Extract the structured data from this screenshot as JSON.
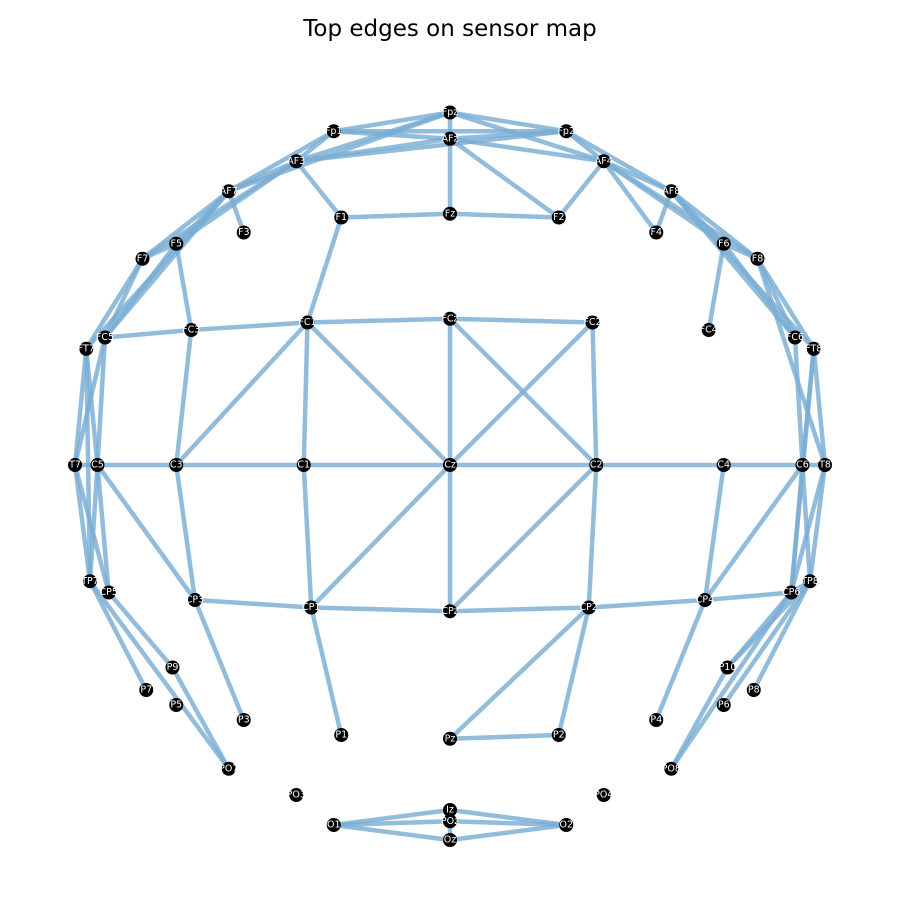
{
  "title": "Top edges on sensor map",
  "colors": {
    "edge": "#7aadd4",
    "node": "#000000",
    "label": "#ffffff"
  },
  "chart_data": {
    "type": "network",
    "nodes": [
      {
        "id": "Fpz",
        "x": 0.0,
        "y": 0.94
      },
      {
        "id": "Fp1",
        "x": -0.31,
        "y": 0.89
      },
      {
        "id": "Fp2",
        "x": 0.31,
        "y": 0.89
      },
      {
        "id": "AFz",
        "x": 0.0,
        "y": 0.87
      },
      {
        "id": "AF3",
        "x": -0.41,
        "y": 0.81
      },
      {
        "id": "AF4",
        "x": 0.41,
        "y": 0.81
      },
      {
        "id": "AF7",
        "x": -0.59,
        "y": 0.73
      },
      {
        "id": "AF8",
        "x": 0.59,
        "y": 0.73
      },
      {
        "id": "F3",
        "x": -0.55,
        "y": 0.62
      },
      {
        "id": "F1",
        "x": -0.29,
        "y": 0.66
      },
      {
        "id": "Fz",
        "x": 0.0,
        "y": 0.67
      },
      {
        "id": "F2",
        "x": 0.29,
        "y": 0.66
      },
      {
        "id": "F4",
        "x": 0.55,
        "y": 0.62
      },
      {
        "id": "F5",
        "x": -0.73,
        "y": 0.59
      },
      {
        "id": "F6",
        "x": 0.73,
        "y": 0.59
      },
      {
        "id": "F7",
        "x": -0.82,
        "y": 0.55
      },
      {
        "id": "F8",
        "x": 0.82,
        "y": 0.55
      },
      {
        "id": "FT7",
        "x": -0.97,
        "y": 0.31
      },
      {
        "id": "FC5",
        "x": -0.92,
        "y": 0.34
      },
      {
        "id": "FC3",
        "x": -0.69,
        "y": 0.36
      },
      {
        "id": "FC1",
        "x": -0.38,
        "y": 0.38
      },
      {
        "id": "FCz",
        "x": 0.0,
        "y": 0.39
      },
      {
        "id": "FC2",
        "x": 0.38,
        "y": 0.38
      },
      {
        "id": "FC4",
        "x": 0.69,
        "y": 0.36
      },
      {
        "id": "FC6",
        "x": 0.92,
        "y": 0.34
      },
      {
        "id": "FT8",
        "x": 0.97,
        "y": 0.31
      },
      {
        "id": "T7",
        "x": -1.0,
        "y": 0.0
      },
      {
        "id": "C5",
        "x": -0.94,
        "y": 0.0
      },
      {
        "id": "C3",
        "x": -0.73,
        "y": 0.0
      },
      {
        "id": "C1",
        "x": -0.39,
        "y": 0.0
      },
      {
        "id": "Cz",
        "x": 0.0,
        "y": 0.0
      },
      {
        "id": "C2",
        "x": 0.39,
        "y": 0.0
      },
      {
        "id": "C4",
        "x": 0.73,
        "y": 0.0
      },
      {
        "id": "C6",
        "x": 0.94,
        "y": 0.0
      },
      {
        "id": "T8",
        "x": 1.0,
        "y": 0.0
      },
      {
        "id": "TP7",
        "x": -0.96,
        "y": -0.31
      },
      {
        "id": "CP5",
        "x": -0.91,
        "y": -0.34
      },
      {
        "id": "CP3",
        "x": -0.68,
        "y": -0.36
      },
      {
        "id": "CP1",
        "x": -0.37,
        "y": -0.38
      },
      {
        "id": "CPz",
        "x": 0.0,
        "y": -0.39
      },
      {
        "id": "CP2",
        "x": 0.37,
        "y": -0.38
      },
      {
        "id": "CP4",
        "x": 0.68,
        "y": -0.36
      },
      {
        "id": "CP6",
        "x": 0.91,
        "y": -0.34
      },
      {
        "id": "TP8",
        "x": 0.96,
        "y": -0.31
      },
      {
        "id": "P9",
        "x": -0.74,
        "y": -0.54
      },
      {
        "id": "P10",
        "x": 0.74,
        "y": -0.54
      },
      {
        "id": "P7",
        "x": -0.81,
        "y": -0.6
      },
      {
        "id": "P8",
        "x": 0.81,
        "y": -0.6
      },
      {
        "id": "P5",
        "x": -0.73,
        "y": -0.64
      },
      {
        "id": "P6",
        "x": 0.73,
        "y": -0.64
      },
      {
        "id": "P3",
        "x": -0.55,
        "y": -0.68
      },
      {
        "id": "P4",
        "x": 0.55,
        "y": -0.68
      },
      {
        "id": "P1",
        "x": -0.29,
        "y": -0.72
      },
      {
        "id": "P2",
        "x": 0.29,
        "y": -0.72
      },
      {
        "id": "Pz",
        "x": 0.0,
        "y": -0.73
      },
      {
        "id": "PO7",
        "x": -0.59,
        "y": -0.81
      },
      {
        "id": "PO8",
        "x": 0.59,
        "y": -0.81
      },
      {
        "id": "PO3",
        "x": -0.41,
        "y": -0.88
      },
      {
        "id": "PO4",
        "x": 0.41,
        "y": -0.88
      },
      {
        "id": "Iz",
        "x": 0.0,
        "y": -0.92
      },
      {
        "id": "POz",
        "x": 0.0,
        "y": -0.95
      },
      {
        "id": "O1",
        "x": -0.31,
        "y": -0.96
      },
      {
        "id": "O2",
        "x": 0.31,
        "y": -0.96
      },
      {
        "id": "Oz",
        "x": 0.0,
        "y": -1.0
      }
    ],
    "edges": [
      [
        "Fp1",
        "Fpz"
      ],
      [
        "Fp1",
        "AFz"
      ],
      [
        "Fp1",
        "AF3"
      ],
      [
        "Fp1",
        "AF7"
      ],
      [
        "Fp1",
        "Fp2"
      ],
      [
        "Fpz",
        "AF3"
      ],
      [
        "Fpz",
        "AFz"
      ],
      [
        "Fpz",
        "Fp2"
      ],
      [
        "Fpz",
        "AF4"
      ],
      [
        "Fpz",
        "AF7"
      ],
      [
        "AFz",
        "AF3"
      ],
      [
        "AFz",
        "AF4"
      ],
      [
        "AFz",
        "Fz"
      ],
      [
        "AFz",
        "F2"
      ],
      [
        "AFz",
        "Fp2"
      ],
      [
        "AF3",
        "Fp2"
      ],
      [
        "AF3",
        "F1"
      ],
      [
        "AF3",
        "AF7"
      ],
      [
        "AF3",
        "F7"
      ],
      [
        "AF3",
        "F5"
      ],
      [
        "AF7",
        "F3"
      ],
      [
        "AF7",
        "F5"
      ],
      [
        "AF7",
        "F7"
      ],
      [
        "AF7",
        "FC5"
      ],
      [
        "AF7",
        "FT7"
      ],
      [
        "Fp2",
        "AF4"
      ],
      [
        "Fp2",
        "AF8"
      ],
      [
        "AF4",
        "F2"
      ],
      [
        "AF4",
        "F4"
      ],
      [
        "AF4",
        "AF8"
      ],
      [
        "AF4",
        "F6"
      ],
      [
        "AF4",
        "F8"
      ],
      [
        "AF8",
        "F4"
      ],
      [
        "AF8",
        "F6"
      ],
      [
        "AF8",
        "F8"
      ],
      [
        "AF8",
        "FC6"
      ],
      [
        "AF8",
        "FT8"
      ],
      [
        "F1",
        "Fz"
      ],
      [
        "Fz",
        "F2"
      ],
      [
        "F1",
        "FC1"
      ],
      [
        "F7",
        "F5"
      ],
      [
        "F7",
        "FT7"
      ],
      [
        "F7",
        "FC5"
      ],
      [
        "F5",
        "FC5"
      ],
      [
        "F5",
        "FC3"
      ],
      [
        "F6",
        "F8"
      ],
      [
        "F6",
        "FC4"
      ],
      [
        "F6",
        "FC6"
      ],
      [
        "F8",
        "FC6"
      ],
      [
        "F8",
        "FT8"
      ],
      [
        "F8",
        "T8"
      ],
      [
        "FT7",
        "T7"
      ],
      [
        "FT7",
        "C5"
      ],
      [
        "FT7",
        "TP7"
      ],
      [
        "FC5",
        "FC3"
      ],
      [
        "FC5",
        "C5"
      ],
      [
        "FC5",
        "T7"
      ],
      [
        "FC3",
        "FC1"
      ],
      [
        "FC3",
        "C3"
      ],
      [
        "FC1",
        "FCz"
      ],
      [
        "FC1",
        "C1"
      ],
      [
        "FC1",
        "Cz"
      ],
      [
        "FC1",
        "C3"
      ],
      [
        "FCz",
        "Cz"
      ],
      [
        "FCz",
        "C2"
      ],
      [
        "FCz",
        "FC2"
      ],
      [
        "FC2",
        "Cz"
      ],
      [
        "FC2",
        "C2"
      ],
      [
        "FC6",
        "C6"
      ],
      [
        "FT8",
        "C6"
      ],
      [
        "FT8",
        "T8"
      ],
      [
        "FT8",
        "CP6"
      ],
      [
        "T7",
        "C5"
      ],
      [
        "C5",
        "C3"
      ],
      [
        "C3",
        "C1"
      ],
      [
        "C1",
        "Cz"
      ],
      [
        "Cz",
        "C2"
      ],
      [
        "C2",
        "C4"
      ],
      [
        "C4",
        "C6"
      ],
      [
        "C6",
        "T8"
      ],
      [
        "T7",
        "TP7"
      ],
      [
        "T7",
        "CP5"
      ],
      [
        "C5",
        "TP7"
      ],
      [
        "C5",
        "CP5"
      ],
      [
        "C5",
        "CP3"
      ],
      [
        "C3",
        "CP3"
      ],
      [
        "C1",
        "CP1"
      ],
      [
        "Cz",
        "CP1"
      ],
      [
        "Cz",
        "CPz"
      ],
      [
        "C2",
        "CPz"
      ],
      [
        "C2",
        "CP2"
      ],
      [
        "C4",
        "CP4"
      ],
      [
        "C6",
        "CP4"
      ],
      [
        "C6",
        "CP6"
      ],
      [
        "C6",
        "TP8"
      ],
      [
        "T8",
        "CP6"
      ],
      [
        "T8",
        "TP8"
      ],
      [
        "CP3",
        "CP1"
      ],
      [
        "CP1",
        "CPz"
      ],
      [
        "CPz",
        "CP2"
      ],
      [
        "CP2",
        "CP4"
      ],
      [
        "CP4",
        "CP6"
      ],
      [
        "CP6",
        "TP8"
      ],
      [
        "TP7",
        "P7"
      ],
      [
        "CP5",
        "P9"
      ],
      [
        "TP7",
        "PO7"
      ],
      [
        "P9",
        "PO7"
      ],
      [
        "CP3",
        "P3"
      ],
      [
        "CP1",
        "P1"
      ],
      [
        "CP2",
        "Pz"
      ],
      [
        "CP2",
        "P2"
      ],
      [
        "Pz",
        "P2"
      ],
      [
        "CP4",
        "P4"
      ],
      [
        "CP6",
        "P10"
      ],
      [
        "CP6",
        "PO8"
      ],
      [
        "TP8",
        "P10"
      ],
      [
        "TP8",
        "P6"
      ],
      [
        "TP8",
        "P8"
      ],
      [
        "P10",
        "PO8"
      ],
      [
        "O1",
        "Iz"
      ],
      [
        "O1",
        "POz"
      ],
      [
        "O1",
        "Oz"
      ],
      [
        "Iz",
        "O2"
      ],
      [
        "POz",
        "O2"
      ],
      [
        "Oz",
        "O2"
      ],
      [
        "Iz",
        "Oz"
      ]
    ]
  }
}
